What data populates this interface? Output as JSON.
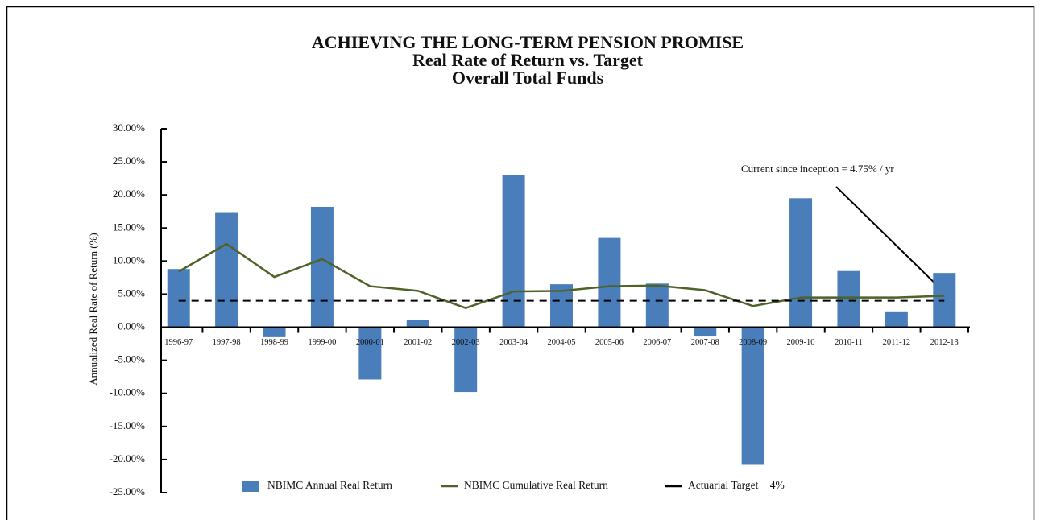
{
  "chart_data": {
    "type": "bar",
    "title": [
      "ACHIEVING THE LONG-TERM PENSION PROMISE",
      "Real Rate of Return vs. Target",
      "Overall Total Funds"
    ],
    "y_label": "Annualized Real Rate of Return (%)",
    "categories": [
      "1996-97",
      "1997-98",
      "1998-99",
      "1999-00",
      "2000-01",
      "2001-02",
      "2002-03",
      "2003-04",
      "2004-05",
      "2005-06",
      "2006-07",
      "2007-08",
      "2008-09",
      "2009-10",
      "2010-11",
      "2011-12",
      "2012-13"
    ],
    "series": [
      {
        "name": "NBIMC Annual Real Return",
        "type": "bar",
        "color": "#4a7ebb",
        "values": [
          8.8,
          17.4,
          -1.5,
          18.2,
          -7.9,
          1.1,
          -9.8,
          23.0,
          6.5,
          13.5,
          6.6,
          -1.4,
          -20.8,
          19.5,
          8.5,
          2.4,
          8.2
        ]
      },
      {
        "name": "NBIMC Cumulative Real Return",
        "type": "line",
        "color": "#4f6228",
        "values": [
          8.4,
          12.6,
          7.6,
          10.3,
          6.2,
          5.5,
          2.9,
          5.4,
          5.5,
          6.2,
          6.3,
          5.6,
          3.2,
          4.5,
          4.5,
          4.5,
          4.75
        ]
      },
      {
        "name": "Actuarial Target + 4%",
        "type": "dashed-line",
        "color": "#000000",
        "values": [
          4,
          4,
          4,
          4,
          4,
          4,
          4,
          4,
          4,
          4,
          4,
          4,
          4,
          4,
          4,
          4,
          4
        ]
      }
    ],
    "annotation": "Current since inception = 4.75% / yr",
    "ylim": [
      -25,
      30
    ],
    "yticks": [
      {
        "value": 30,
        "label": "30.00%"
      },
      {
        "value": 25,
        "label": "25.00%"
      },
      {
        "value": 20,
        "label": "20.00%"
      },
      {
        "value": 15,
        "label": "15.00%"
      },
      {
        "value": 10,
        "label": "10.00%"
      },
      {
        "value": 5,
        "label": "5.00%"
      },
      {
        "value": 0,
        "label": "0.00%"
      },
      {
        "value": -5,
        "label": "-5.00%"
      },
      {
        "value": -10,
        "label": "-10.00%"
      },
      {
        "value": -15,
        "label": "-15.00%"
      },
      {
        "value": -20,
        "label": "-20.00%"
      },
      {
        "value": -25,
        "label": "-25.00%"
      }
    ],
    "grid": false
  }
}
